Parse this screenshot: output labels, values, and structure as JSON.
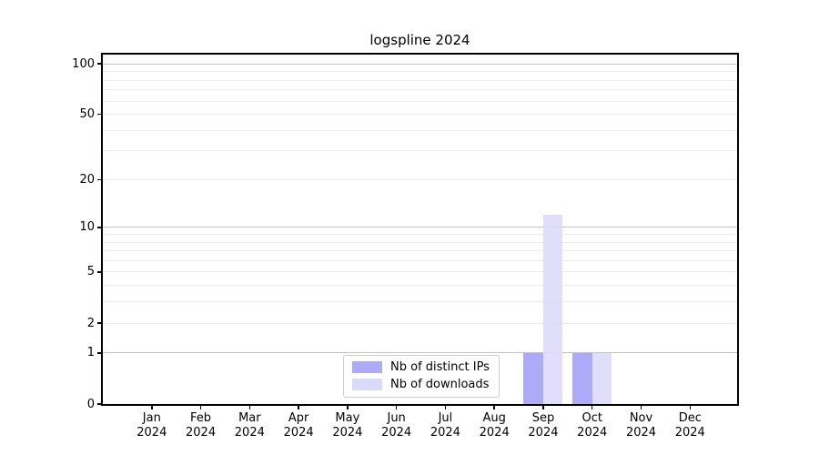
{
  "chart_data": {
    "type": "bar",
    "title": "logspline 2024",
    "categories": [
      {
        "month": "Jan",
        "year": "2024"
      },
      {
        "month": "Feb",
        "year": "2024"
      },
      {
        "month": "Mar",
        "year": "2024"
      },
      {
        "month": "Apr",
        "year": "2024"
      },
      {
        "month": "May",
        "year": "2024"
      },
      {
        "month": "Jun",
        "year": "2024"
      },
      {
        "month": "Jul",
        "year": "2024"
      },
      {
        "month": "Aug",
        "year": "2024"
      },
      {
        "month": "Sep",
        "year": "2024"
      },
      {
        "month": "Oct",
        "year": "2024"
      },
      {
        "month": "Nov",
        "year": "2024"
      },
      {
        "month": "Dec",
        "year": "2024"
      }
    ],
    "series": [
      {
        "name": "Nb of distinct IPs",
        "color": "#adaaf7",
        "values": [
          0,
          0,
          0,
          0,
          0,
          0,
          0,
          0,
          1,
          1,
          0,
          0
        ]
      },
      {
        "name": "Nb of downloads",
        "color": "#dcdaf9",
        "values": [
          0,
          0,
          0,
          0,
          0,
          0,
          0,
          0,
          12,
          1,
          0,
          0
        ]
      }
    ],
    "xlabel": "",
    "ylabel": "",
    "yscale": "log1p",
    "ylim": [
      0,
      114
    ],
    "yticks": [
      0,
      1,
      2,
      5,
      10,
      20,
      50,
      100
    ],
    "grid": {
      "major_lines": [
        1,
        10,
        100
      ],
      "minor_lines": [
        2,
        3,
        4,
        5,
        6,
        7,
        8,
        9,
        20,
        30,
        40,
        50,
        60,
        70,
        80,
        90
      ]
    },
    "legend_position": "bottom-center"
  }
}
